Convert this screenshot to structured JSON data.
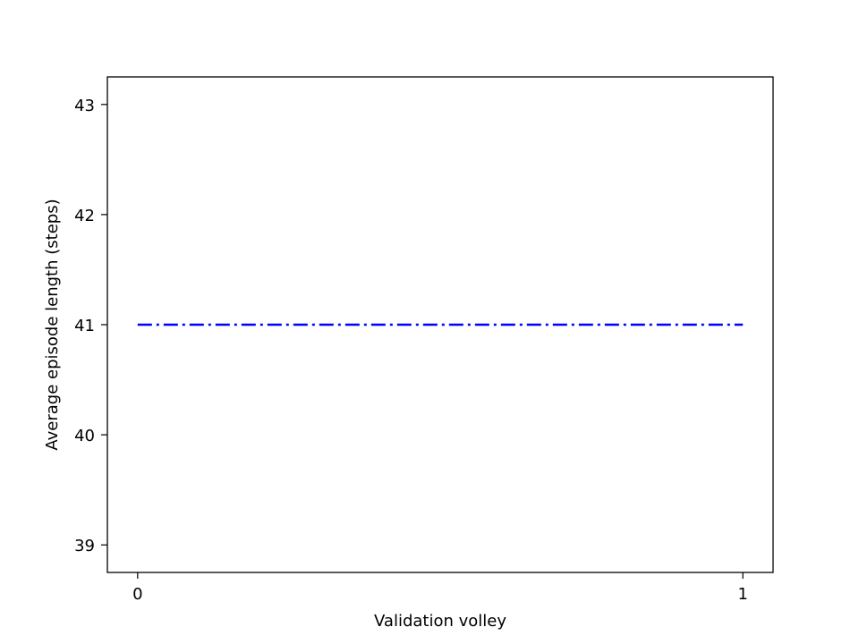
{
  "chart_data": {
    "type": "line",
    "title": "",
    "xlabel": "Validation volley",
    "ylabel": "Average episode length (steps)",
    "x": [
      0,
      1
    ],
    "series": [
      {
        "values": [
          41,
          41
        ],
        "color": "#0000ff",
        "linestyle": "dashdot"
      }
    ],
    "xlim": [
      -0.05,
      1.05
    ],
    "ylim": [
      38.75,
      43.25
    ],
    "xticks": [
      0,
      1
    ],
    "xtick_labels": [
      "0",
      "1"
    ],
    "yticks": [
      39,
      40,
      41,
      42,
      43
    ],
    "ytick_labels": [
      "39",
      "40",
      "41",
      "42",
      "43"
    ],
    "grid": false,
    "legend": false
  }
}
